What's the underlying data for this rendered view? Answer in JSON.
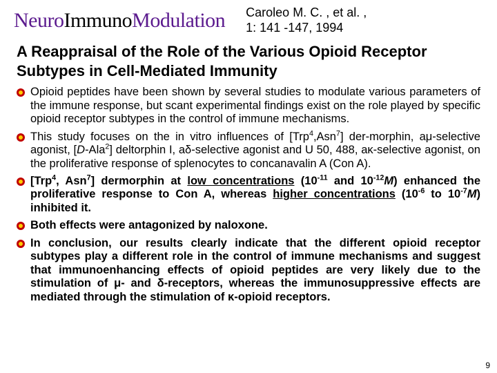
{
  "logo": {
    "neuro": "Neuro",
    "immuno": "Immuno",
    "modulation": "Modulation"
  },
  "citation": {
    "line1": "Caroleo M. C. , et al. ,",
    "line2": "1: 141 -147, 1994"
  },
  "title": "A Reappraisal of the Role of the Various Opioid Receptor Subtypes in Cell-Mediated Immunity",
  "bullets": [
    {
      "html": "Opioid peptides have been shown by several studies to modulate various parameters of the immune response, but scant experimental findings exist on the role played by specific opioid receptor subtypes in the control of immune mechanisms."
    },
    {
      "html": "This study focuses on the in vitro influences of [Trp<sup>4</sup>,Asn<sup>7</sup>] der-morphin, a&mu;-selective agonist, [<i>D</i>-Ala<sup>2</sup>] deltorphin I, a&delta;-selective agonist and U 50, 488, a&kappa;-selective agonist, on the proliferative response of splenocytes to concanavalin A (Con A)."
    },
    {
      "html": "<b>[Trp<sup>4</sup>, Asn<sup>7</sup>] dermorphin at <span class=\"u\">low concentrations</span> (10<sup>-11</sup> and 10<sup>-12</sup><i>M</i>) enhanced the proliferative response to Con A, whereas <span class=\"u\">higher concentrations</span> (10<sup>-6</sup> to 10<sup>-7</sup><i>M</i>) inhibited it.</b>"
    },
    {
      "html": "<b>Both effects were antagonized by naloxone.</b>"
    },
    {
      "html": "<b>In conclusion, our results clearly indicate that the different opioid receptor subtypes play a different role in the control of immune mechanisms and suggest that immunoenhancing effects of opioid peptides are very likely due to the stimulation of &mu;- and &delta;-receptors, whereas the immunosuppressive effects are mediated through the stimulation of &kappa;-opioid receptors.</b>"
    }
  ],
  "bullet_style": {
    "outer_fill": "#c00000",
    "inner_fill": "#ffcc00",
    "outer_r": 6,
    "inner_r": 3
  },
  "pagenum": "9"
}
